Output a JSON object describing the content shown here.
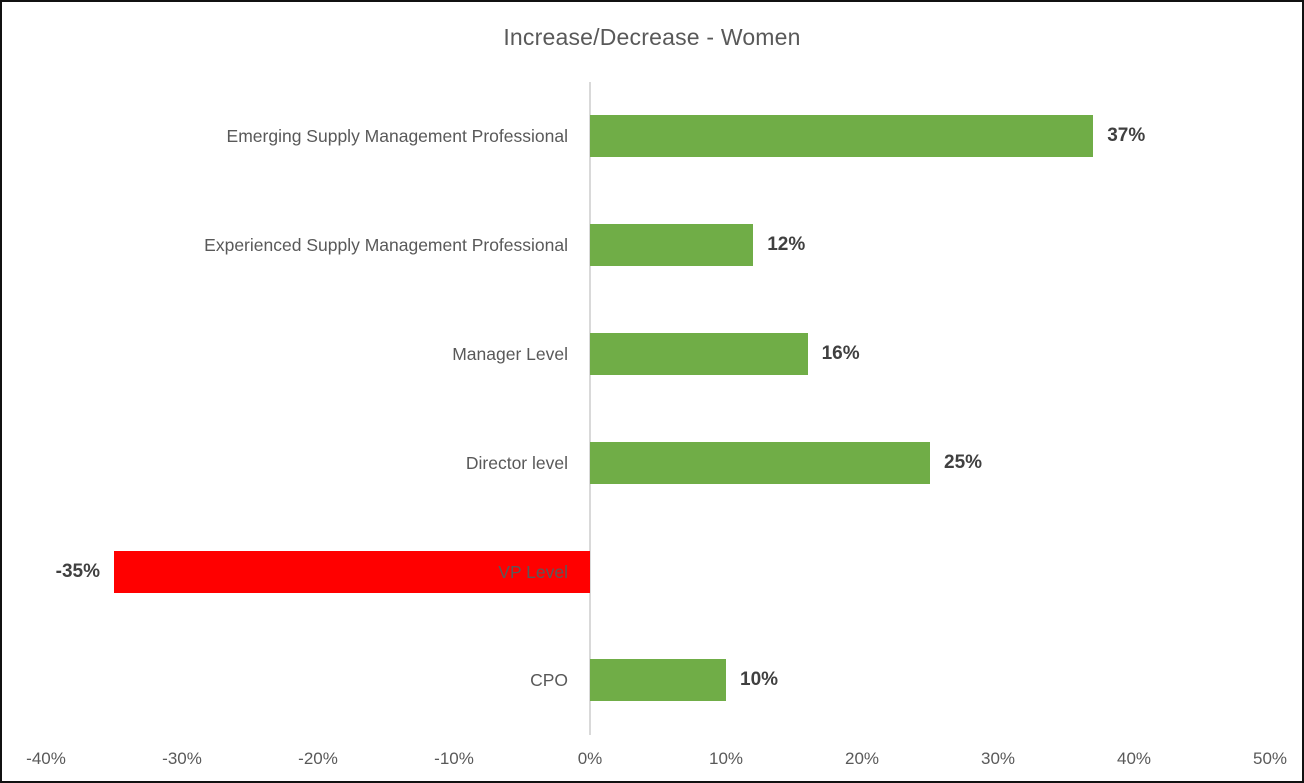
{
  "chart_data": {
    "type": "bar",
    "orientation": "horizontal",
    "title": "Increase/Decrease - Women",
    "categories": [
      "Emerging Supply Management Professional",
      "Experienced Supply Management Professional",
      "Manager Level",
      "Director level",
      "VP Level",
      "CPO"
    ],
    "values": [
      37,
      12,
      16,
      25,
      -35,
      10
    ],
    "data_labels": [
      "37%",
      "12%",
      "16%",
      "25%",
      "-35%",
      "10%"
    ],
    "xlim": [
      -40,
      50
    ],
    "x_tick_step": 10,
    "x_tick_labels": [
      "-40%",
      "-30%",
      "-20%",
      "-10%",
      "0%",
      "10%",
      "20%",
      "30%",
      "40%",
      "50%"
    ],
    "grid": "none",
    "legend": "none",
    "colors": {
      "positive_bar": "#70AD47",
      "negative_bar": "#FF0000",
      "axis_line": "#D9D9D9",
      "title_text": "#595959",
      "category_text": "#595959",
      "data_label_text": "#404040",
      "tick_text": "#595959"
    }
  }
}
